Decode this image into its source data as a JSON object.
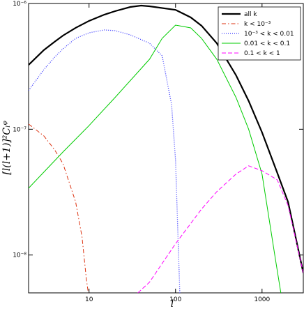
{
  "chart_data": {
    "type": "line",
    "x_label": "l",
    "y_label": "[l(l+1)]²Cₗᵠ",
    "xscale": "log",
    "yscale": "log",
    "xlim": [
      2,
      3000
    ],
    "ylim": [
      5e-09,
      1e-06
    ],
    "xticks": [
      10,
      100,
      1000
    ],
    "yticks": [
      {
        "value": 1e-08,
        "label": "10⁻⁸"
      },
      {
        "value": 1e-07,
        "label": "10⁻⁷"
      },
      {
        "value": 1e-06,
        "label": "10⁻⁶"
      }
    ],
    "legend": "upper right",
    "series": [
      {
        "name": "all k",
        "color": "#000000",
        "linestyle": "thick",
        "x": [
          2,
          3,
          4,
          5,
          7,
          10,
          15,
          20,
          30,
          40,
          50,
          100,
          150,
          200,
          300,
          500,
          700,
          1000,
          1500,
          2000,
          3000
        ],
        "values": [
          3.25e-07,
          4.26e-07,
          4.96e-07,
          5.56e-07,
          6.4e-07,
          7.27e-07,
          8.15e-07,
          8.69e-07,
          9.38e-07,
          9.62e-07,
          9.5e-07,
          8.9e-07,
          7.75e-07,
          6.65e-07,
          4.83e-07,
          2.69e-07,
          1.68e-07,
          9.44e-08,
          4.5e-08,
          2.64e-08,
          7.2e-09
        ]
      },
      {
        "name": "k < 10⁻³",
        "color": "#dd3311",
        "linestyle": "dashdot",
        "x": [
          2,
          3,
          4,
          5,
          7,
          8.3,
          9.3,
          9.8
        ],
        "values": [
          1.1e-07,
          8.86e-08,
          6.87e-08,
          5.32e-08,
          2.64e-08,
          1.39e-08,
          6.48e-09,
          5e-09
        ]
      },
      {
        "name": "10⁻³ < k < 0.01",
        "color": "#3333ff",
        "linestyle": "dotted",
        "x": [
          2,
          3,
          4,
          5,
          7,
          10,
          15,
          20,
          30,
          50,
          70,
          90,
          100,
          112
        ],
        "values": [
          2.03e-07,
          2.98e-07,
          3.74e-07,
          4.36e-07,
          5.28e-07,
          5.85e-07,
          6.16e-07,
          6.08e-07,
          5.63e-07,
          4.83e-07,
          3.84e-07,
          1.57e-07,
          5.67e-08,
          5e-09
        ]
      },
      {
        "name": "0.01 < k < 0.1",
        "color": "#00cc00",
        "linestyle": "solid",
        "x": [
          2,
          3,
          5,
          10,
          20,
          50,
          70,
          100,
          150,
          200,
          300,
          500,
          700,
          1000,
          1420,
          1650
        ],
        "values": [
          3.4e-08,
          4.56e-08,
          6.6e-08,
          1.07e-07,
          1.79e-07,
          3.6e-07,
          5.28e-07,
          6.73e-07,
          6.4e-07,
          5.28e-07,
          3.6e-07,
          1.79e-07,
          1e-07,
          4.4e-08,
          9.5e-09,
          5e-09
        ]
      },
      {
        "name": "0.1 < k < 1",
        "color": "#ff00ff",
        "linestyle": "dashed",
        "x": [
          36.7,
          50,
          100,
          200,
          300,
          500,
          700,
          1000,
          1500,
          2000,
          3000
        ],
        "values": [
          5e-09,
          6.08e-09,
          1.23e-08,
          2.32e-08,
          3.19e-08,
          4.4e-08,
          5.12e-08,
          4.68e-08,
          3.96e-08,
          2.47e-08,
          7.2e-09
        ]
      }
    ]
  }
}
